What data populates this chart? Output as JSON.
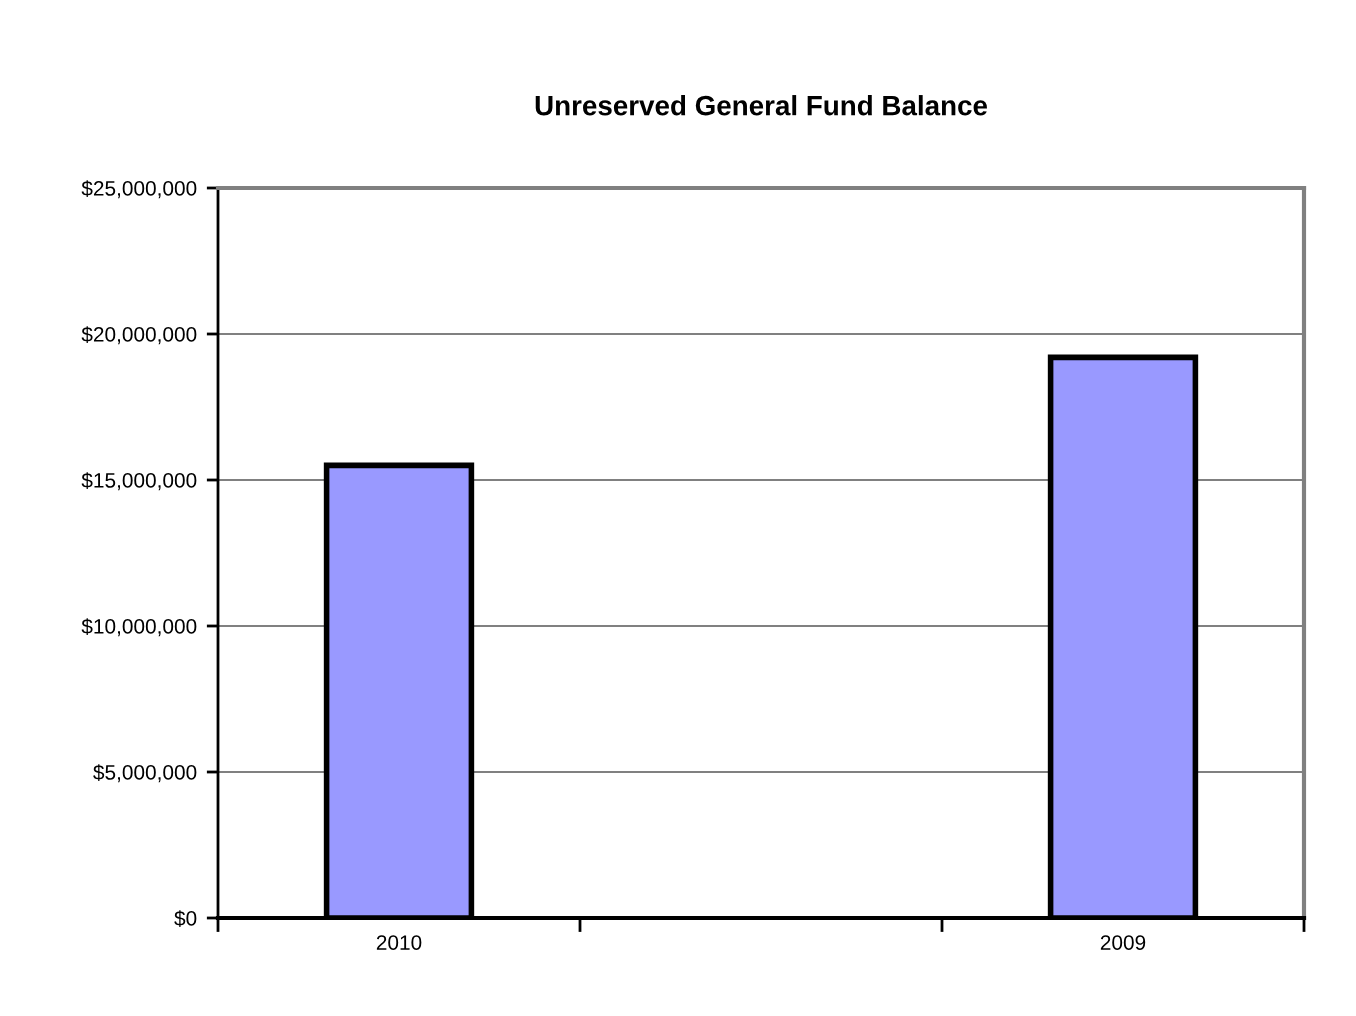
{
  "chart_data": {
    "type": "bar",
    "title": "Unreserved General Fund Balance",
    "categories": [
      "2010",
      null,
      "2009"
    ],
    "values": [
      15500000,
      null,
      19200000
    ],
    "color": "#9999ff",
    "ylim": [
      0,
      25000000
    ],
    "yticks": [
      {
        "value": 0,
        "label": "$0"
      },
      {
        "value": 5000000,
        "label": "$5,000,000"
      },
      {
        "value": 10000000,
        "label": "$10,000,000"
      },
      {
        "value": 15000000,
        "label": "$15,000,000"
      },
      {
        "value": 20000000,
        "label": "$20,000,000"
      },
      {
        "value": 25000000,
        "label": "$25,000,000"
      }
    ],
    "grid": "y"
  }
}
